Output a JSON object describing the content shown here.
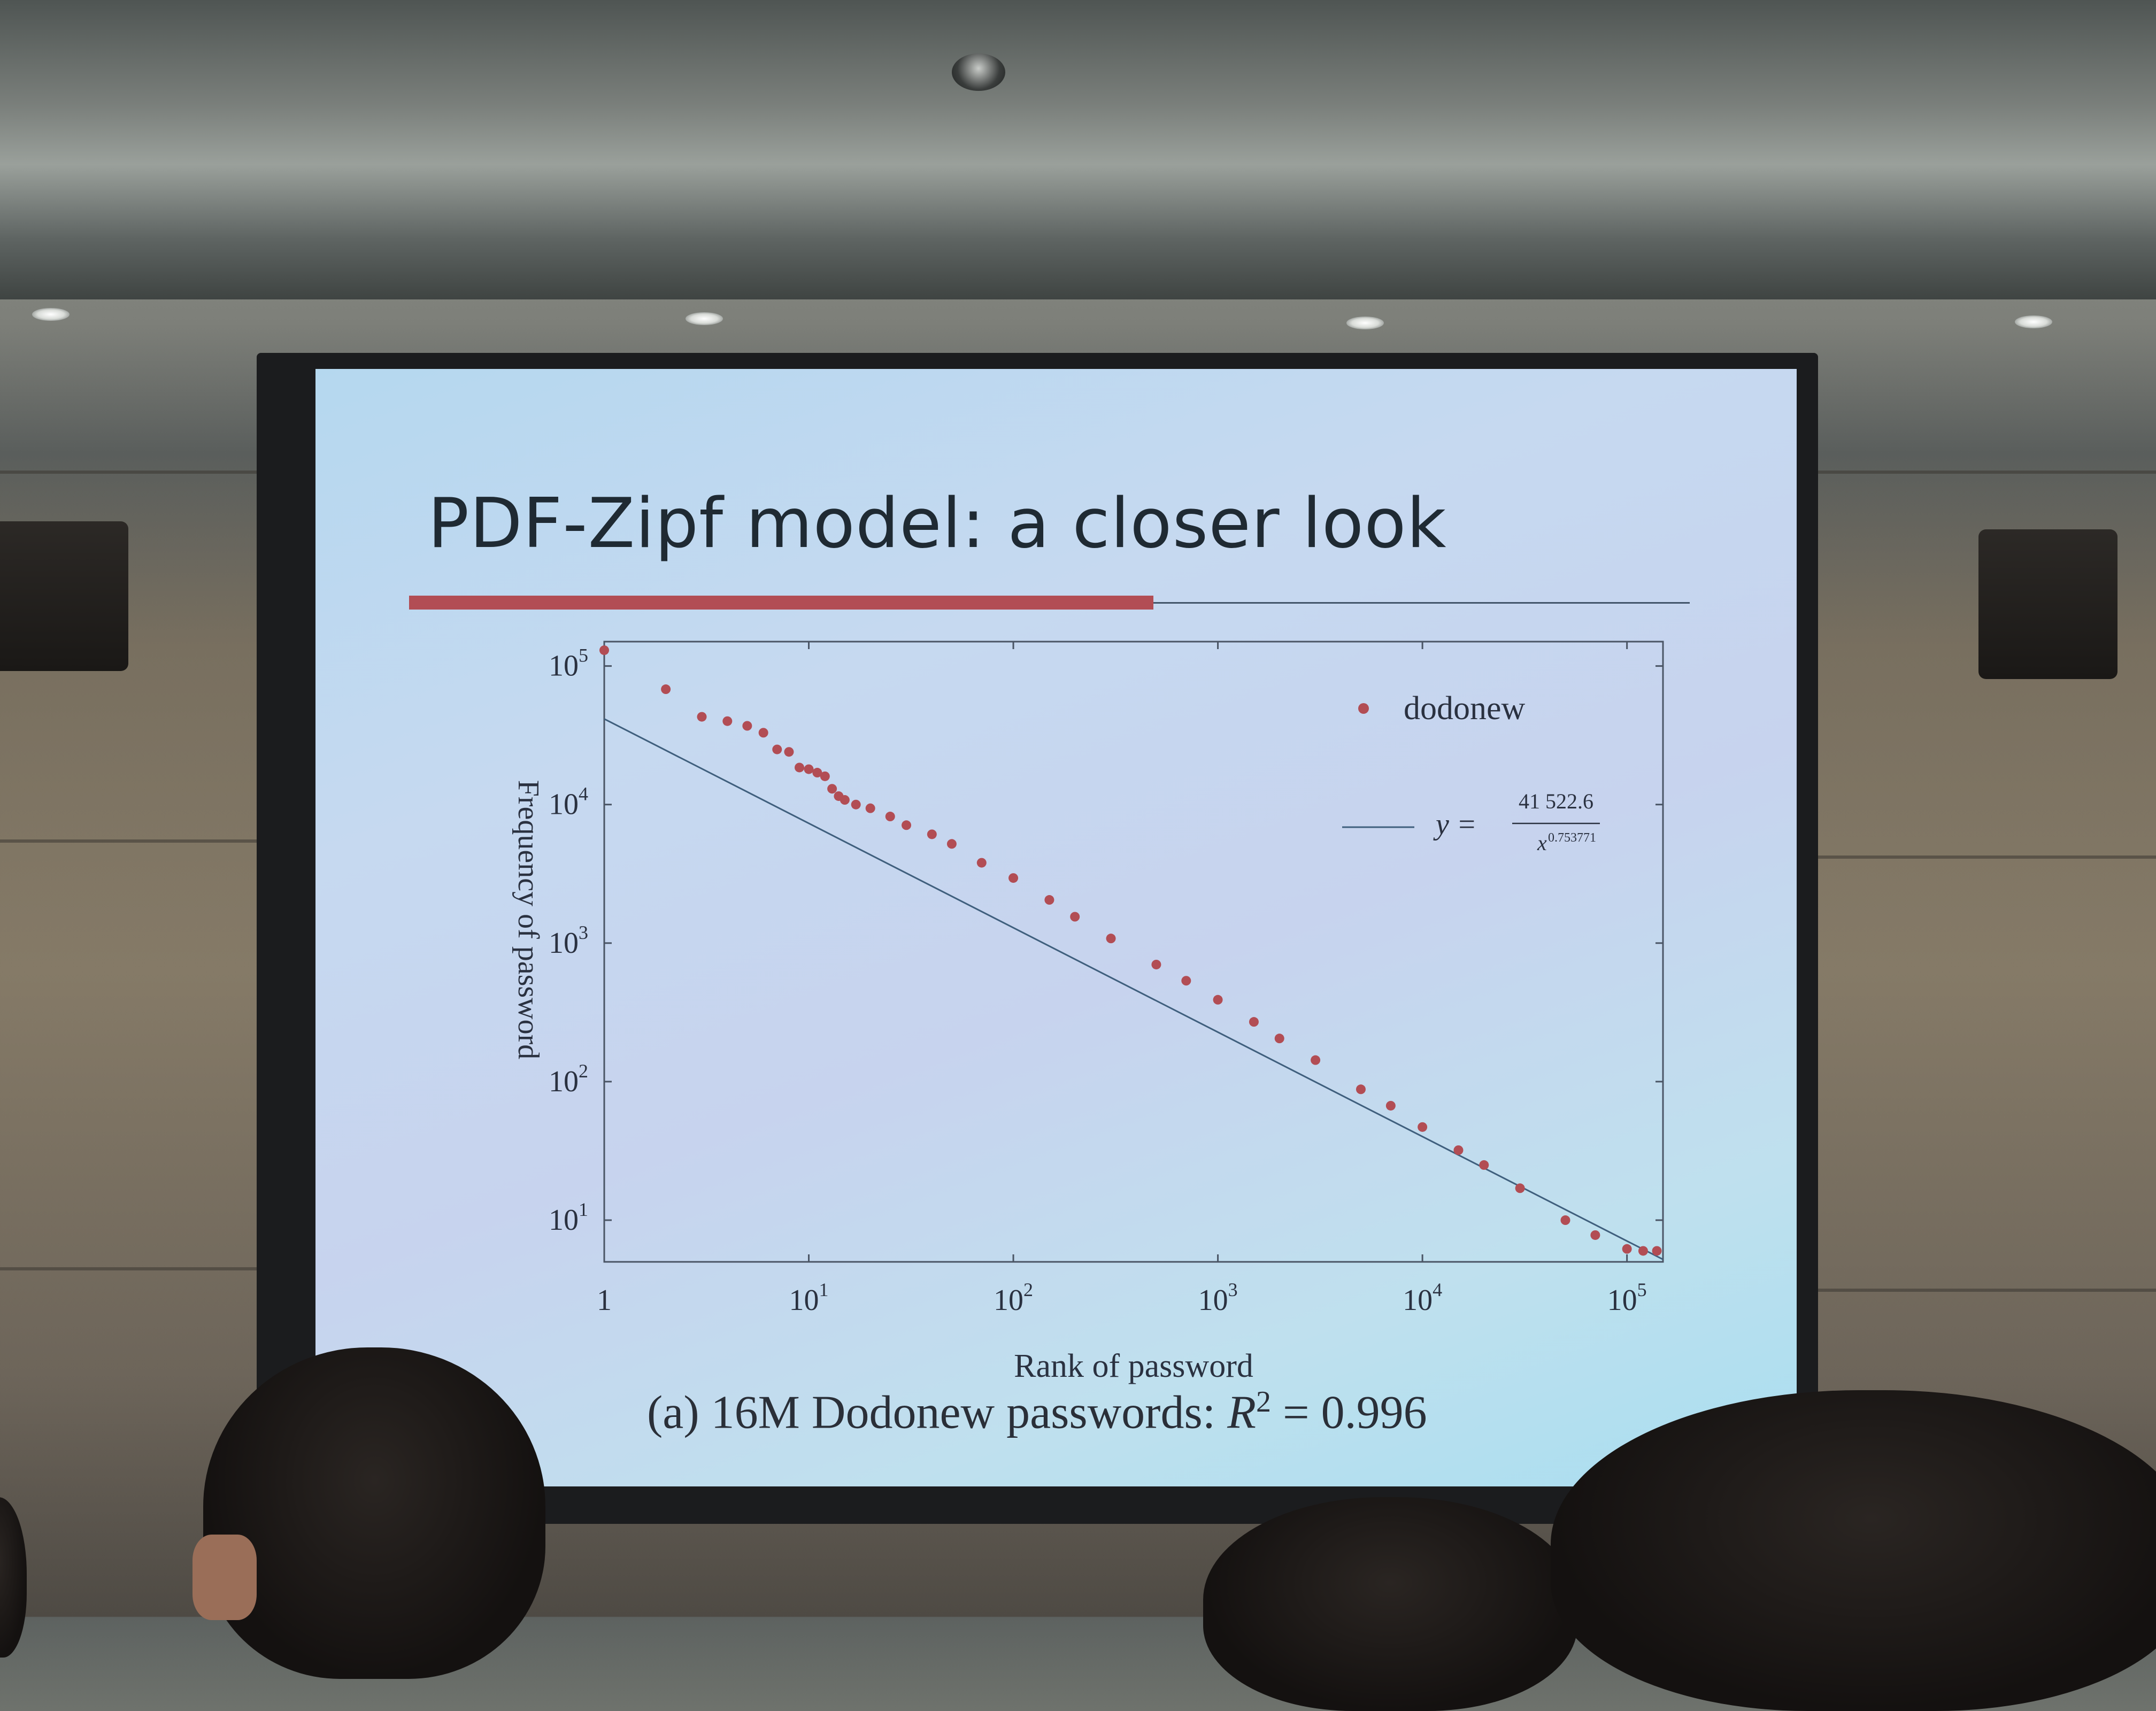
{
  "slide": {
    "title": "PDF-Zipf model: a closer look"
  },
  "caption": {
    "prefix": "(a)  16M Dodonew passwords: ",
    "r2_symbol": "R",
    "r2_exp": "2",
    "r2_value": " = 0.996"
  },
  "chart_data": {
    "type": "scatter",
    "xscale": "log",
    "yscale": "log",
    "xlabel": "Rank of password",
    "ylabel": "Frequency of password",
    "xlim": [
      1,
      150000
    ],
    "ylim": [
      5,
      150000
    ],
    "x_ticks": [
      {
        "value": 1,
        "label": "1"
      },
      {
        "value": 10,
        "base": "10",
        "exp": "1"
      },
      {
        "value": 100,
        "base": "10",
        "exp": "2"
      },
      {
        "value": 1000,
        "base": "10",
        "exp": "3"
      },
      {
        "value": 10000,
        "base": "10",
        "exp": "4"
      },
      {
        "value": 100000,
        "base": "10",
        "exp": "5"
      }
    ],
    "y_ticks": [
      {
        "value": 10,
        "base": "10",
        "exp": "1"
      },
      {
        "value": 100,
        "base": "10",
        "exp": "2"
      },
      {
        "value": 1000,
        "base": "10",
        "exp": "3"
      },
      {
        "value": 10000,
        "base": "10",
        "exp": "4"
      },
      {
        "value": 100000,
        "base": "10",
        "exp": "5"
      }
    ],
    "legend_position": "top-right",
    "series": [
      {
        "name": "dodonew",
        "kind": "points",
        "color": "#b24d54",
        "x": [
          1,
          2,
          3,
          4,
          5,
          6,
          7,
          8,
          9,
          10,
          11,
          12,
          13,
          14,
          15,
          17,
          20,
          25,
          30,
          40,
          50,
          70,
          100,
          150,
          200,
          300,
          500,
          700,
          1000,
          1500,
          2000,
          3000,
          5000,
          7000,
          10000,
          15000,
          20000,
          30000,
          50000,
          70000,
          100000,
          120000,
          140000
        ],
        "y": [
          130000,
          68000,
          43000,
          40000,
          37000,
          33000,
          25000,
          24000,
          18500,
          18000,
          17000,
          16000,
          13000,
          11500,
          10800,
          10000,
          9400,
          8200,
          7100,
          6100,
          5200,
          3800,
          2950,
          2050,
          1550,
          1080,
          700,
          535,
          390,
          270,
          205,
          143,
          88,
          67,
          47,
          32,
          25,
          17,
          10,
          7.8,
          6.2,
          6,
          6
        ]
      },
      {
        "name": "y = 41 522.6 / x^0.753771",
        "kind": "line",
        "color": "#3f5f7d",
        "coefficient": 41522.6,
        "exponent": 0.753771
      }
    ],
    "legend": {
      "points_label": "dodonew",
      "fit_lhs": "y =",
      "fit_num": "41 522.6",
      "fit_den_base": "x",
      "fit_den_exp": "0.753771"
    }
  }
}
